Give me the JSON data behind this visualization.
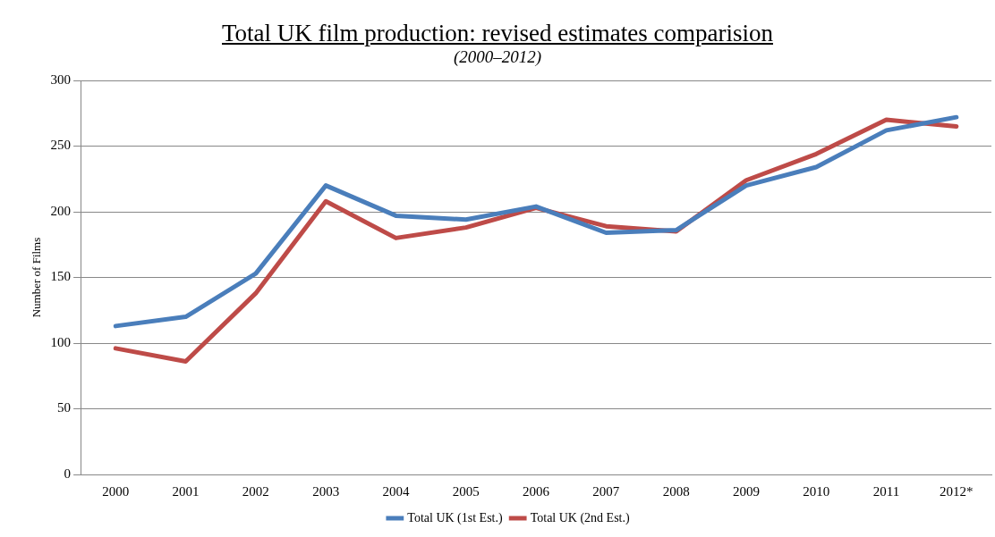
{
  "chart_data": {
    "type": "line",
    "title": "Total UK film production: revised estimates comparision",
    "subtitle": "(2000–2012)",
    "ylabel": "Number of Films",
    "categories": [
      "2000",
      "2001",
      "2002",
      "2003",
      "2004",
      "2005",
      "2006",
      "2007",
      "2008",
      "2009",
      "2010",
      "2011",
      "2012*"
    ],
    "series": [
      {
        "name": "Total UK (1st Est.)",
        "color": "#4a7ebb",
        "values": [
          113,
          120,
          153,
          220,
          197,
          194,
          204,
          184,
          186,
          220,
          234,
          262,
          272
        ]
      },
      {
        "name": "Total UK (2nd Est.)",
        "color": "#be4b48",
        "values": [
          96,
          86,
          138,
          208,
          180,
          188,
          203,
          189,
          185,
          224,
          244,
          270,
          265
        ]
      }
    ],
    "ylim": [
      0,
      300
    ],
    "yticks": [
      0,
      50,
      100,
      150,
      200,
      250,
      300
    ],
    "grid": "y",
    "legend": "bottom",
    "marker": "none",
    "line_style": "solid"
  }
}
